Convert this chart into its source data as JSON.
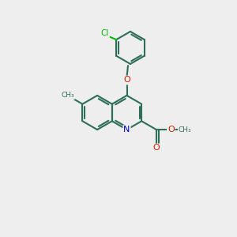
{
  "bg_color": "#eeeeee",
  "bond_color": "#2d6e5a",
  "bond_width": 1.5,
  "atom_colors": {
    "Cl": "#00bb00",
    "O": "#cc2200",
    "N": "#0000cc",
    "C": "#2d6e5a",
    "text": "#2d6e5a"
  },
  "figsize": [
    3.0,
    3.0
  ],
  "dpi": 100
}
